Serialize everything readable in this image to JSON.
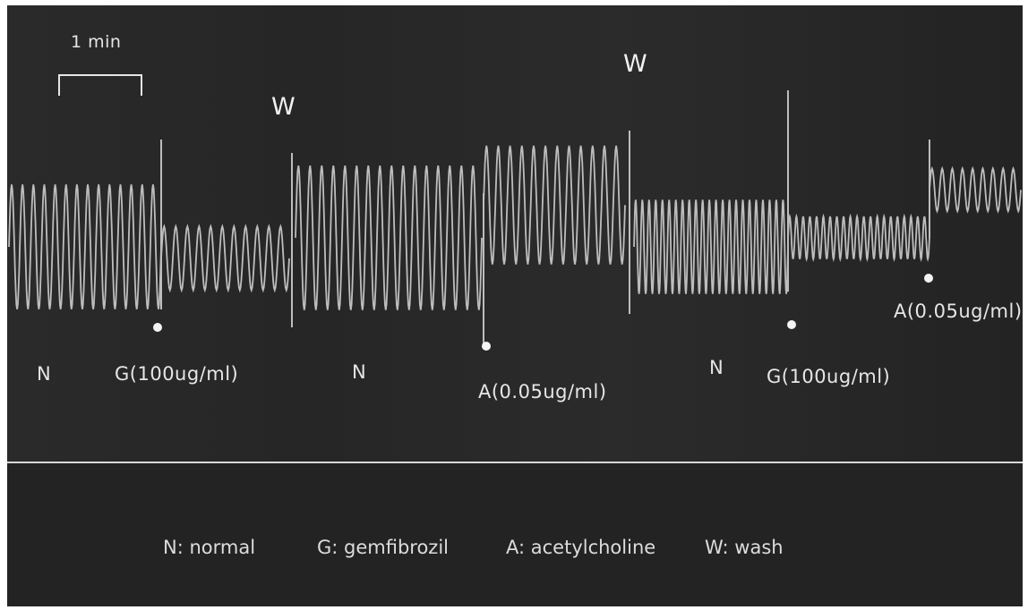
{
  "chart_data": {
    "type": "line",
    "title": "",
    "xlabel": "",
    "ylabel": "",
    "scale_bar": {
      "label": "1 min"
    },
    "segments": [
      {
        "label": "N",
        "marker": "",
        "amplitude": 0.82,
        "baseline": 0.0,
        "cycles": 14
      },
      {
        "label": "G",
        "marker": "G(100ug/ml)",
        "amplitude": 0.42,
        "baseline": -0.15,
        "cycles": 11
      },
      {
        "label": "N",
        "marker": "",
        "amplitude": 0.95,
        "baseline": 0.12,
        "cycles": 16
      },
      {
        "label": "A",
        "marker": "A(0.05ug/ml)",
        "amplitude": 0.78,
        "baseline": 0.55,
        "cycles": 12
      },
      {
        "label": "N",
        "marker": "",
        "amplitude": 0.62,
        "baseline": 0.0,
        "cycles": 23
      },
      {
        "label": "G",
        "marker": "G(100ug/ml)",
        "amplitude": 0.28,
        "baseline": 0.12,
        "cycles": 21
      },
      {
        "label": "A",
        "marker": "A(0.05ug/ml)",
        "amplitude": 0.28,
        "baseline": 0.75,
        "cycles": 9
      }
    ],
    "washes": [
      "W",
      "W"
    ],
    "legend": [
      {
        "key": "N",
        "text": "N: normal"
      },
      {
        "key": "G",
        "text": "G: gemfibrozil"
      },
      {
        "key": "A",
        "text": "A: acetylcholine"
      },
      {
        "key": "W",
        "text": "W: wash"
      }
    ],
    "grid": false,
    "trace_color": "#bdbdbd",
    "background_color": "#262626"
  }
}
